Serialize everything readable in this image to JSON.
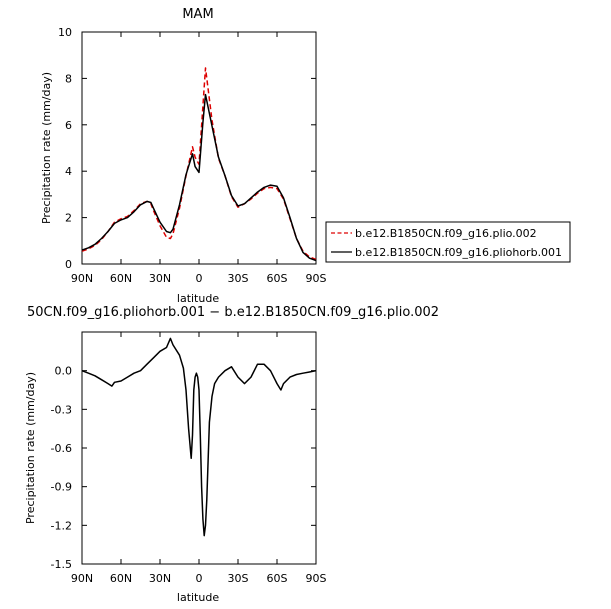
{
  "chart_data": [
    {
      "type": "line",
      "title": "MAM",
      "xlabel": "latitude",
      "ylabel": "Precipitation rate (mm/day)",
      "xlim": [
        90,
        -90
      ],
      "ylim": [
        0,
        10
      ],
      "x_ticks": [
        90,
        60,
        30,
        0,
        -30,
        -60,
        -90
      ],
      "x_tick_labels": [
        "90N",
        "60N",
        "30N",
        "0",
        "30S",
        "60S",
        "90S"
      ],
      "y_ticks": [
        0,
        2,
        4,
        6,
        8,
        10
      ],
      "y_tick_labels": [
        "0",
        "2",
        "4",
        "6",
        "8",
        "10"
      ],
      "legend": {
        "placement": "right"
      },
      "x": [
        90,
        85,
        80,
        75,
        70,
        65,
        60,
        55,
        50,
        45,
        40,
        37,
        35,
        30,
        25,
        22,
        20,
        15,
        10,
        5,
        3,
        0,
        -3,
        -5,
        -10,
        -15,
        -20,
        -25,
        -30,
        -35,
        -40,
        -45,
        -50,
        -55,
        -60,
        -65,
        -70,
        -75,
        -80,
        -85,
        -90
      ],
      "series": [
        {
          "name": "b.e12.B1850CN.f09_g16.plio.002",
          "color": "#dd0000",
          "dash": "dashed",
          "values": [
            0.55,
            0.65,
            0.8,
            1.05,
            1.4,
            1.8,
            1.95,
            2.05,
            2.3,
            2.6,
            2.7,
            2.6,
            2.3,
            1.65,
            1.15,
            1.1,
            1.3,
            2.4,
            3.8,
            5.05,
            4.6,
            4.3,
            6.8,
            8.45,
            6.2,
            4.55,
            3.8,
            2.9,
            2.45,
            2.6,
            2.8,
            3.05,
            3.25,
            3.3,
            3.25,
            2.8,
            1.95,
            1.1,
            0.55,
            0.3,
            0.2
          ]
        },
        {
          "name": "b.e12.B1850CN.f09_g16.pliohorb.001",
          "color": "#000000",
          "dash": "solid",
          "values": [
            0.6,
            0.7,
            0.85,
            1.1,
            1.4,
            1.75,
            1.9,
            2.0,
            2.25,
            2.55,
            2.7,
            2.65,
            2.4,
            1.8,
            1.4,
            1.35,
            1.5,
            2.55,
            3.85,
            4.75,
            4.2,
            3.95,
            6.1,
            7.3,
            5.95,
            4.6,
            3.8,
            2.95,
            2.5,
            2.6,
            2.85,
            3.1,
            3.3,
            3.4,
            3.35,
            2.85,
            2.0,
            1.1,
            0.5,
            0.25,
            0.15
          ]
        }
      ]
    },
    {
      "type": "line",
      "title": "50CN.f09_g16.pliohorb.001 − b.e12.B1850CN.f09_g16.plio.002",
      "xlabel": "latitude",
      "ylabel": "Precipitation rate (mm/day)",
      "xlim": [
        90,
        -90
      ],
      "ylim": [
        -1.5,
        0.3
      ],
      "x_ticks": [
        90,
        60,
        30,
        0,
        -30,
        -60,
        -90
      ],
      "x_tick_labels": [
        "90N",
        "60N",
        "30N",
        "0",
        "30S",
        "60S",
        "90S"
      ],
      "y_ticks": [
        0.0,
        -0.3,
        -0.6,
        -0.9,
        -1.2,
        -1.5
      ],
      "y_tick_labels": [
        "0.0",
        "-0.3",
        "-0.6",
        "-0.9",
        "-1.2",
        "-1.5"
      ],
      "x": [
        90,
        85,
        80,
        75,
        70,
        67,
        65,
        60,
        55,
        50,
        45,
        40,
        35,
        30,
        25,
        22,
        20,
        15,
        12,
        10,
        8,
        6,
        5,
        4,
        3,
        2,
        1,
        0,
        -1,
        -2,
        -3,
        -4,
        -5,
        -6,
        -7,
        -8,
        -10,
        -12,
        -15,
        -20,
        -25,
        -30,
        -35,
        -40,
        -45,
        -50,
        -55,
        -60,
        -63,
        -65,
        -70,
        -75,
        -80,
        -85,
        -90
      ],
      "series": [
        {
          "name": "",
          "color": "#000000",
          "dash": "solid",
          "values": [
            0.0,
            -0.02,
            -0.04,
            -0.07,
            -0.1,
            -0.12,
            -0.09,
            -0.08,
            -0.05,
            -0.02,
            0.0,
            0.05,
            0.1,
            0.15,
            0.18,
            0.25,
            0.2,
            0.12,
            0.02,
            -0.15,
            -0.45,
            -0.68,
            -0.5,
            -0.15,
            -0.05,
            -0.02,
            -0.05,
            -0.15,
            -0.5,
            -0.9,
            -1.15,
            -1.28,
            -1.2,
            -1.0,
            -0.7,
            -0.4,
            -0.2,
            -0.1,
            -0.05,
            0.0,
            0.03,
            -0.05,
            -0.1,
            -0.05,
            0.05,
            0.05,
            0.0,
            -0.1,
            -0.15,
            -0.1,
            -0.05,
            -0.03,
            -0.02,
            -0.01,
            0.0
          ]
        }
      ]
    }
  ]
}
